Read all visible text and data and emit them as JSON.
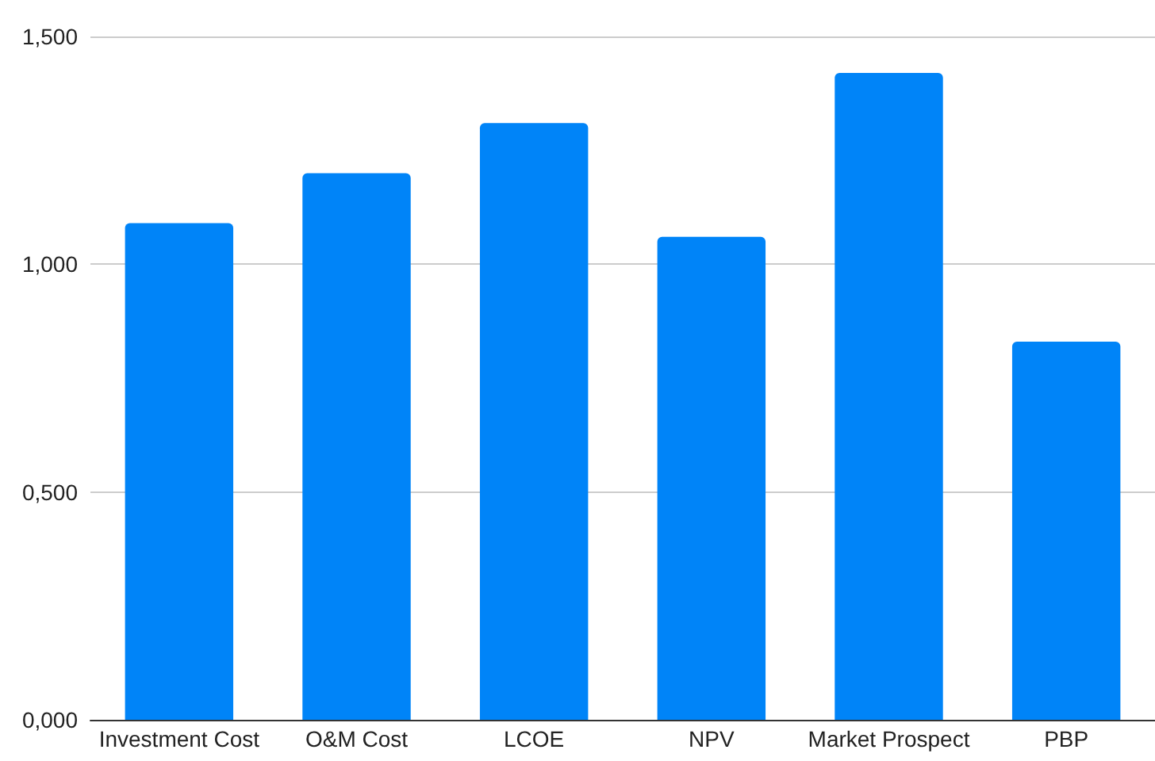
{
  "chart_data": {
    "type": "bar",
    "categories": [
      "Investment Cost",
      "O&M Cost",
      "LCOE",
      "NPV",
      "Market Prospect",
      "PBP"
    ],
    "values": [
      1.09,
      1.2,
      1.31,
      1.06,
      1.42,
      0.83
    ],
    "color": "#0084f8",
    "ylim": [
      0,
      1.5
    ],
    "yticks": [
      {
        "value": 0,
        "label": "0,000"
      },
      {
        "value": 0.5,
        "label": "0,500"
      },
      {
        "value": 1,
        "label": "1,000"
      },
      {
        "value": 1.5,
        "label": "1,500"
      }
    ],
    "grid": "y"
  }
}
